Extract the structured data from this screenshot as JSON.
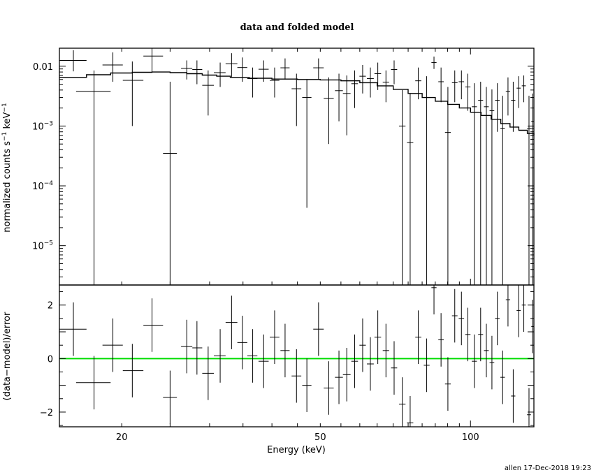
{
  "chart_data": {
    "type": "scatter",
    "title": "data and folded model",
    "xlabel": "Energy (keV)",
    "x_scale": "log",
    "xlim": [
      15.0,
      134.0
    ],
    "footer": "allen 17-Dec-2018 19:23",
    "colors": {
      "axes": "#000000",
      "data": "#000000",
      "model": "#000000",
      "zero_line": "#00dd00"
    },
    "top_panel": {
      "ylabel_main": "normalized counts s",
      "ylabel_exp1": "−1",
      "ylabel_mid": " keV",
      "ylabel_exp2": "−1",
      "y_scale": "log",
      "ylim": [
        2.2e-06,
        0.02
      ],
      "y_ticks": [
        {
          "value": 0.01,
          "label": "0.01",
          "exp": ""
        },
        {
          "value": 0.001,
          "label": "10",
          "exp": "−3"
        },
        {
          "value": 0.0001,
          "label": "10",
          "exp": "−4"
        },
        {
          "value": 1e-05,
          "label": "10",
          "exp": "−5"
        }
      ],
      "data": [
        {
          "x": 16.0,
          "xlo": 15.0,
          "xhi": 17.0,
          "y": 0.0125,
          "ylo": 0.0082,
          "yhi": 0.0185
        },
        {
          "x": 17.6,
          "xlo": 16.2,
          "xhi": 19.0,
          "y": 0.0038,
          "ylo": 2.2e-06,
          "yhi": 0.0085
        },
        {
          "x": 19.2,
          "xlo": 18.3,
          "xhi": 20.1,
          "y": 0.0105,
          "ylo": 0.0055,
          "yhi": 0.017
        },
        {
          "x": 21.0,
          "xlo": 20.1,
          "xhi": 22.1,
          "y": 0.0058,
          "ylo": 0.001,
          "yhi": 0.012
        },
        {
          "x": 23.0,
          "xlo": 22.1,
          "xhi": 24.2,
          "y": 0.0148,
          "ylo": 0.008,
          "yhi": 0.02
        },
        {
          "x": 25.0,
          "xlo": 24.2,
          "xhi": 25.8,
          "y": 0.00035,
          "ylo": 2.2e-06,
          "yhi": 0.0055
        },
        {
          "x": 27.0,
          "xlo": 26.3,
          "xhi": 27.7,
          "y": 0.0092,
          "ylo": 0.006,
          "yhi": 0.0125
        },
        {
          "x": 28.3,
          "xlo": 27.7,
          "xhi": 29.0,
          "y": 0.0088,
          "ylo": 0.005,
          "yhi": 0.0125
        },
        {
          "x": 29.8,
          "xlo": 29.0,
          "xhi": 30.6,
          "y": 0.0048,
          "ylo": 0.0015,
          "yhi": 0.0085
        },
        {
          "x": 31.5,
          "xlo": 30.6,
          "xhi": 32.3,
          "y": 0.0078,
          "ylo": 0.0045,
          "yhi": 0.0115
        },
        {
          "x": 33.2,
          "xlo": 32.3,
          "xhi": 34.1,
          "y": 0.011,
          "ylo": 0.0065,
          "yhi": 0.0165
        },
        {
          "x": 34.9,
          "xlo": 34.1,
          "xhi": 35.7,
          "y": 0.0095,
          "ylo": 0.0055,
          "yhi": 0.014
        },
        {
          "x": 36.6,
          "xlo": 35.7,
          "xhi": 37.4,
          "y": 0.0062,
          "ylo": 0.003,
          "yhi": 0.0095
        },
        {
          "x": 38.5,
          "xlo": 37.6,
          "xhi": 39.4,
          "y": 0.0089,
          "ylo": 0.0055,
          "yhi": 0.0125
        },
        {
          "x": 40.5,
          "xlo": 39.6,
          "xhi": 41.4,
          "y": 0.0058,
          "ylo": 0.003,
          "yhi": 0.0095
        },
        {
          "x": 42.5,
          "xlo": 41.6,
          "xhi": 43.4,
          "y": 0.0094,
          "ylo": 0.006,
          "yhi": 0.0135
        },
        {
          "x": 44.8,
          "xlo": 43.8,
          "xhi": 45.8,
          "y": 0.0042,
          "ylo": 0.001,
          "yhi": 0.0075
        },
        {
          "x": 47.0,
          "xlo": 46.0,
          "xhi": 48.0,
          "y": 0.003,
          "ylo": 4.3e-05,
          "yhi": 0.006
        },
        {
          "x": 49.6,
          "xlo": 48.4,
          "xhi": 50.8,
          "y": 0.0094,
          "ylo": 0.006,
          "yhi": 0.0135
        },
        {
          "x": 52.0,
          "xlo": 50.8,
          "xhi": 53.2,
          "y": 0.0029,
          "ylo": 0.0005,
          "yhi": 0.0065
        },
        {
          "x": 54.5,
          "xlo": 53.5,
          "xhi": 55.5,
          "y": 0.0039,
          "ylo": 0.0012,
          "yhi": 0.0075
        },
        {
          "x": 56.5,
          "xlo": 55.5,
          "xhi": 57.5,
          "y": 0.0035,
          "ylo": 0.0007,
          "yhi": 0.007
        },
        {
          "x": 58.6,
          "xlo": 57.7,
          "xhi": 59.5,
          "y": 0.0051,
          "ylo": 0.002,
          "yhi": 0.0085
        },
        {
          "x": 60.8,
          "xlo": 59.9,
          "xhi": 61.7,
          "y": 0.0068,
          "ylo": 0.0035,
          "yhi": 0.0105
        },
        {
          "x": 63.0,
          "xlo": 62.0,
          "xhi": 64.0,
          "y": 0.0062,
          "ylo": 0.003,
          "yhi": 0.0095
        },
        {
          "x": 65.2,
          "xlo": 64.2,
          "xhi": 66.2,
          "y": 0.0075,
          "ylo": 0.004,
          "yhi": 0.0115
        },
        {
          "x": 67.7,
          "xlo": 66.7,
          "xhi": 68.7,
          "y": 0.0054,
          "ylo": 0.0025,
          "yhi": 0.0085
        },
        {
          "x": 70.3,
          "xlo": 69.3,
          "xhi": 71.3,
          "y": 0.0088,
          "ylo": 0.005,
          "yhi": 0.0125
        },
        {
          "x": 73.0,
          "xlo": 71.9,
          "xhi": 74.1,
          "y": 0.001,
          "ylo": 2.2e-06,
          "yhi": 0.004
        },
        {
          "x": 75.7,
          "xlo": 74.6,
          "xhi": 76.8,
          "y": 0.00053,
          "ylo": 2.2e-06,
          "yhi": 0.0035
        },
        {
          "x": 78.6,
          "xlo": 77.5,
          "xhi": 79.7,
          "y": 0.0057,
          "ylo": 0.0028,
          "yhi": 0.0095
        },
        {
          "x": 81.7,
          "xlo": 80.6,
          "xhi": 82.8,
          "y": 0.003,
          "ylo": 2.2e-06,
          "yhi": 0.0068
        },
        {
          "x": 84.5,
          "xlo": 83.5,
          "xhi": 85.5,
          "y": 0.0115,
          "ylo": 0.009,
          "yhi": 0.0145
        },
        {
          "x": 87.3,
          "xlo": 86.2,
          "xhi": 88.4,
          "y": 0.0055,
          "ylo": 0.0025,
          "yhi": 0.0095
        },
        {
          "x": 90.1,
          "xlo": 88.9,
          "xhi": 91.3,
          "y": 0.00078,
          "ylo": 2.2e-06,
          "yhi": 0.0045
        },
        {
          "x": 93.0,
          "xlo": 91.8,
          "xhi": 94.2,
          "y": 0.0053,
          "ylo": 0.0025,
          "yhi": 0.0085
        },
        {
          "x": 95.9,
          "xlo": 94.7,
          "xhi": 97.1,
          "y": 0.0055,
          "ylo": 0.0028,
          "yhi": 0.0085
        },
        {
          "x": 98.8,
          "xlo": 97.6,
          "xhi": 100.0,
          "y": 0.0045,
          "ylo": 0.0018,
          "yhi": 0.0075
        },
        {
          "x": 101.8,
          "xlo": 100.6,
          "xhi": 103.0,
          "y": 0.0021,
          "ylo": 2.2e-06,
          "yhi": 0.0052
        },
        {
          "x": 104.8,
          "xlo": 103.6,
          "xhi": 106.0,
          "y": 0.0027,
          "ylo": 2.2e-06,
          "yhi": 0.0055
        },
        {
          "x": 107.6,
          "xlo": 106.4,
          "xhi": 108.8,
          "y": 0.0021,
          "ylo": 2.2e-06,
          "yhi": 0.0045
        },
        {
          "x": 110.4,
          "xlo": 109.2,
          "xhi": 111.6,
          "y": 0.0018,
          "ylo": 2.2e-06,
          "yhi": 0.0041
        },
        {
          "x": 113.2,
          "xlo": 112.0,
          "xhi": 114.4,
          "y": 0.0027,
          "ylo": 0.0008,
          "yhi": 0.0052
        },
        {
          "x": 116.0,
          "xlo": 114.8,
          "xhi": 117.2,
          "y": 0.00092,
          "ylo": 2.2e-06,
          "yhi": 0.0032
        },
        {
          "x": 118.9,
          "xlo": 117.7,
          "xhi": 120.1,
          "y": 0.0038,
          "ylo": 0.0015,
          "yhi": 0.0065
        },
        {
          "x": 121.8,
          "xlo": 120.6,
          "xhi": 123.0,
          "y": 0.0027,
          "ylo": 0.0008,
          "yhi": 0.0055
        },
        {
          "x": 124.9,
          "xlo": 123.7,
          "xhi": 126.1,
          "y": 0.0043,
          "ylo": 0.002,
          "yhi": 0.0068
        },
        {
          "x": 127.9,
          "xlo": 126.7,
          "xhi": 129.1,
          "y": 0.0047,
          "ylo": 0.0025,
          "yhi": 0.007
        },
        {
          "x": 131.0,
          "xlo": 129.8,
          "xhi": 132.2,
          "y": 0.0009,
          "ylo": 2.2e-06,
          "yhi": 0.0032
        },
        {
          "x": 133.2,
          "xlo": 132.4,
          "xhi": 134.0,
          "y": 0.0012,
          "ylo": 2.2e-06,
          "yhi": 0.0035
        }
      ],
      "model": [
        {
          "x": 15.0,
          "y": 0.0065
        },
        {
          "x": 17.0,
          "y": 0.0072
        },
        {
          "x": 19.0,
          "y": 0.0077
        },
        {
          "x": 21.0,
          "y": 0.0079
        },
        {
          "x": 23.0,
          "y": 0.008
        },
        {
          "x": 25.0,
          "y": 0.0078
        },
        {
          "x": 27.0,
          "y": 0.0075
        },
        {
          "x": 29.0,
          "y": 0.0071
        },
        {
          "x": 31.0,
          "y": 0.0068
        },
        {
          "x": 33.0,
          "y": 0.0065
        },
        {
          "x": 36.0,
          "y": 0.0063
        },
        {
          "x": 40.0,
          "y": 0.0061
        },
        {
          "x": 45.0,
          "y": 0.006
        },
        {
          "x": 50.0,
          "y": 0.0059
        },
        {
          "x": 55.0,
          "y": 0.0057
        },
        {
          "x": 60.0,
          "y": 0.0053
        },
        {
          "x": 65.0,
          "y": 0.0047
        },
        {
          "x": 70.0,
          "y": 0.0041
        },
        {
          "x": 75.0,
          "y": 0.0035
        },
        {
          "x": 80.0,
          "y": 0.003
        },
        {
          "x": 85.0,
          "y": 0.0026
        },
        {
          "x": 90.0,
          "y": 0.0023
        },
        {
          "x": 95.0,
          "y": 0.002
        },
        {
          "x": 100.0,
          "y": 0.0017
        },
        {
          "x": 105.0,
          "y": 0.0015
        },
        {
          "x": 110.0,
          "y": 0.0013
        },
        {
          "x": 115.0,
          "y": 0.0011
        },
        {
          "x": 120.0,
          "y": 0.00096
        },
        {
          "x": 125.0,
          "y": 0.00085
        },
        {
          "x": 130.0,
          "y": 0.00075
        },
        {
          "x": 134.0,
          "y": 0.0007
        }
      ]
    },
    "bottom_panel": {
      "ylabel": "(data−model)/error",
      "y_scale": "linear",
      "ylim": [
        -2.55,
        2.75
      ],
      "y_ticks": [
        {
          "value": 2,
          "label": "2"
        },
        {
          "value": 0,
          "label": "0"
        },
        {
          "value": -2,
          "label": "−2"
        }
      ],
      "x_ticks": [
        {
          "value": 20,
          "label": "20"
        },
        {
          "value": 50,
          "label": "50"
        },
        {
          "value": 100,
          "label": "100"
        }
      ],
      "zero_line": 0,
      "data": [
        {
          "x": 16.0,
          "xlo": 15.0,
          "xhi": 17.0,
          "y": 1.1,
          "ylo": 0.1,
          "yhi": 2.1
        },
        {
          "x": 17.6,
          "xlo": 16.2,
          "xhi": 19.0,
          "y": -0.9,
          "ylo": -1.9,
          "yhi": 0.1
        },
        {
          "x": 19.2,
          "xlo": 18.3,
          "xhi": 20.1,
          "y": 0.5,
          "ylo": -0.5,
          "yhi": 1.5
        },
        {
          "x": 21.0,
          "xlo": 20.1,
          "xhi": 22.1,
          "y": -0.45,
          "ylo": -1.45,
          "yhi": 0.55
        },
        {
          "x": 23.0,
          "xlo": 22.1,
          "xhi": 24.2,
          "y": 1.25,
          "ylo": 0.25,
          "yhi": 2.25
        },
        {
          "x": 25.0,
          "xlo": 24.2,
          "xhi": 25.8,
          "y": -1.45,
          "ylo": -2.45,
          "yhi": -0.45
        },
        {
          "x": 27.0,
          "xlo": 26.3,
          "xhi": 27.7,
          "y": 0.45,
          "ylo": -0.55,
          "yhi": 1.45
        },
        {
          "x": 28.3,
          "xlo": 27.7,
          "xhi": 29.0,
          "y": 0.4,
          "ylo": -0.6,
          "yhi": 1.4
        },
        {
          "x": 29.8,
          "xlo": 29.0,
          "xhi": 30.6,
          "y": -0.55,
          "ylo": -1.55,
          "yhi": 0.45
        },
        {
          "x": 31.5,
          "xlo": 30.6,
          "xhi": 32.3,
          "y": 0.1,
          "ylo": -0.9,
          "yhi": 1.1
        },
        {
          "x": 33.2,
          "xlo": 32.3,
          "xhi": 34.1,
          "y": 1.35,
          "ylo": 0.35,
          "yhi": 2.35
        },
        {
          "x": 34.9,
          "xlo": 34.1,
          "xhi": 35.7,
          "y": 0.6,
          "ylo": -0.4,
          "yhi": 1.6
        },
        {
          "x": 36.6,
          "xlo": 35.7,
          "xhi": 37.4,
          "y": 0.1,
          "ylo": -0.9,
          "yhi": 1.1
        },
        {
          "x": 38.5,
          "xlo": 37.6,
          "xhi": 39.4,
          "y": -0.1,
          "ylo": -1.1,
          "yhi": 0.9
        },
        {
          "x": 40.5,
          "xlo": 39.6,
          "xhi": 41.4,
          "y": 0.8,
          "ylo": -0.2,
          "yhi": 1.8
        },
        {
          "x": 42.5,
          "xlo": 41.6,
          "xhi": 43.4,
          "y": 0.3,
          "ylo": -0.7,
          "yhi": 1.3
        },
        {
          "x": 44.8,
          "xlo": 43.8,
          "xhi": 45.8,
          "y": -0.65,
          "ylo": -1.65,
          "yhi": 0.35
        },
        {
          "x": 47.0,
          "xlo": 46.0,
          "xhi": 48.0,
          "y": -1.0,
          "ylo": -2.0,
          "yhi": 0.0
        },
        {
          "x": 49.6,
          "xlo": 48.4,
          "xhi": 50.8,
          "y": 1.1,
          "ylo": 0.1,
          "yhi": 2.1
        },
        {
          "x": 52.0,
          "xlo": 50.8,
          "xhi": 53.2,
          "y": -1.1,
          "ylo": -2.1,
          "yhi": -0.1
        },
        {
          "x": 54.5,
          "xlo": 53.5,
          "xhi": 55.5,
          "y": -0.7,
          "ylo": -1.7,
          "yhi": 0.3
        },
        {
          "x": 56.5,
          "xlo": 55.5,
          "xhi": 57.5,
          "y": -0.6,
          "ylo": -1.6,
          "yhi": 0.4
        },
        {
          "x": 58.6,
          "xlo": 57.7,
          "xhi": 59.5,
          "y": -0.1,
          "ylo": -1.1,
          "yhi": 0.9
        },
        {
          "x": 60.8,
          "xlo": 59.9,
          "xhi": 61.7,
          "y": 0.5,
          "ylo": -0.5,
          "yhi": 1.5
        },
        {
          "x": 63.0,
          "xlo": 62.0,
          "xhi": 64.0,
          "y": -0.2,
          "ylo": -1.2,
          "yhi": 0.8
        },
        {
          "x": 65.2,
          "xlo": 64.2,
          "xhi": 66.2,
          "y": 0.8,
          "ylo": -0.2,
          "yhi": 1.8
        },
        {
          "x": 67.7,
          "xlo": 66.7,
          "xhi": 68.7,
          "y": 0.3,
          "ylo": -0.7,
          "yhi": 1.3
        },
        {
          "x": 70.3,
          "xlo": 69.3,
          "xhi": 71.3,
          "y": -0.35,
          "ylo": -1.35,
          "yhi": 0.65
        },
        {
          "x": 73.0,
          "xlo": 71.9,
          "xhi": 74.1,
          "y": -1.7,
          "ylo": -2.7,
          "yhi": -0.7
        },
        {
          "x": 75.7,
          "xlo": 74.6,
          "xhi": 76.8,
          "y": -2.4,
          "ylo": -3.4,
          "yhi": -1.4
        },
        {
          "x": 78.6,
          "xlo": 77.5,
          "xhi": 79.7,
          "y": 0.8,
          "ylo": -0.2,
          "yhi": 1.8
        },
        {
          "x": 81.7,
          "xlo": 80.6,
          "xhi": 82.8,
          "y": -0.25,
          "ylo": -1.25,
          "yhi": 0.75
        },
        {
          "x": 84.5,
          "xlo": 83.5,
          "xhi": 85.5,
          "y": 2.65,
          "ylo": 1.65,
          "yhi": 3.65
        },
        {
          "x": 87.3,
          "xlo": 86.2,
          "xhi": 88.4,
          "y": 0.7,
          "ylo": -0.3,
          "yhi": 1.7
        },
        {
          "x": 90.1,
          "xlo": 88.9,
          "xhi": 91.3,
          "y": -0.95,
          "ylo": -1.95,
          "yhi": 0.05
        },
        {
          "x": 93.0,
          "xlo": 91.8,
          "xhi": 94.2,
          "y": 1.6,
          "ylo": 0.6,
          "yhi": 2.6
        },
        {
          "x": 95.9,
          "xlo": 94.7,
          "xhi": 97.1,
          "y": 1.5,
          "ylo": 0.5,
          "yhi": 2.5
        },
        {
          "x": 98.8,
          "xlo": 97.6,
          "xhi": 100.0,
          "y": 0.9,
          "ylo": -0.1,
          "yhi": 1.9
        },
        {
          "x": 101.8,
          "xlo": 100.6,
          "xhi": 103.0,
          "y": -0.1,
          "ylo": -1.1,
          "yhi": 0.9
        },
        {
          "x": 104.8,
          "xlo": 103.6,
          "xhi": 106.0,
          "y": 0.9,
          "ylo": -0.1,
          "yhi": 1.9
        },
        {
          "x": 107.6,
          "xlo": 106.4,
          "xhi": 108.8,
          "y": 0.3,
          "ylo": -0.7,
          "yhi": 1.3
        },
        {
          "x": 110.4,
          "xlo": 109.2,
          "xhi": 111.6,
          "y": -0.15,
          "ylo": -1.15,
          "yhi": 0.85
        },
        {
          "x": 113.2,
          "xlo": 112.0,
          "xhi": 114.4,
          "y": 1.5,
          "ylo": 0.5,
          "yhi": 2.5
        },
        {
          "x": 116.0,
          "xlo": 114.8,
          "xhi": 117.2,
          "y": -0.7,
          "ylo": -1.7,
          "yhi": 0.3
        },
        {
          "x": 118.9,
          "xlo": 117.7,
          "xhi": 120.1,
          "y": 2.2,
          "ylo": 1.2,
          "yhi": 3.2
        },
        {
          "x": 121.8,
          "xlo": 120.6,
          "xhi": 123.0,
          "y": -1.4,
          "ylo": -2.4,
          "yhi": -0.4
        },
        {
          "x": 124.9,
          "xlo": 123.7,
          "xhi": 126.1,
          "y": 1.8,
          "ylo": 0.8,
          "yhi": 2.8
        },
        {
          "x": 127.9,
          "xlo": 126.7,
          "xhi": 129.1,
          "y": 2.0,
          "ylo": 1.0,
          "yhi": 3.0
        },
        {
          "x": 131.0,
          "xlo": 129.8,
          "xhi": 132.2,
          "y": -2.1,
          "ylo": -3.1,
          "yhi": -1.1
        },
        {
          "x": 133.2,
          "xlo": 132.4,
          "xhi": 134.0,
          "y": 1.2,
          "ylo": 0.2,
          "yhi": 2.2
        }
      ]
    }
  }
}
